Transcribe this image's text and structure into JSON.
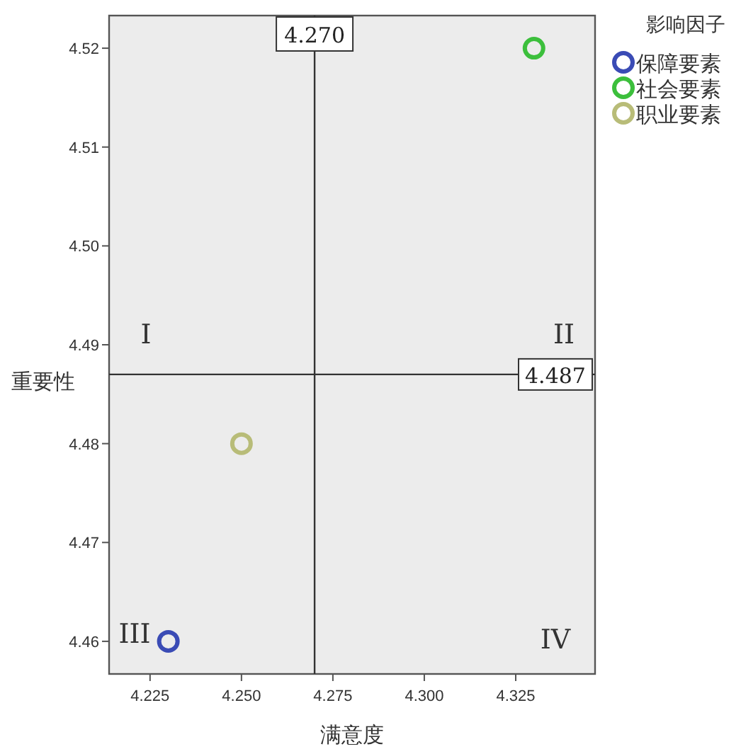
{
  "chart_data": {
    "type": "scatter",
    "xlabel": "满意度",
    "ylabel": "重要性",
    "legend_title": "影响因子",
    "series": [
      {
        "name": "保障要素",
        "color": "#3a4bb5",
        "x": [
          4.23
        ],
        "values": [
          4.46
        ]
      },
      {
        "name": "社会要素",
        "color": "#3cbf3c",
        "x": [
          4.33
        ],
        "values": [
          4.52
        ]
      },
      {
        "name": "职业要素",
        "color": "#b8bc78",
        "x": [
          4.25
        ],
        "values": [
          4.48
        ]
      }
    ],
    "xlim": [
      4.2138,
      4.3467
    ],
    "ylim": [
      4.4567,
      4.5233
    ],
    "xticks": [
      {
        "value": 4.225,
        "label": "4.225"
      },
      {
        "value": 4.25,
        "label": "4.250"
      },
      {
        "value": 4.275,
        "label": "4.275"
      },
      {
        "value": 4.3,
        "label": "4.300"
      },
      {
        "value": 4.325,
        "label": "4.325"
      }
    ],
    "yticks": [
      4.46,
      4.47,
      4.48,
      4.49,
      {
        "value": 4.5,
        "label": "4.50"
      },
      4.51,
      4.52
    ],
    "ref_lines": [
      {
        "axis": "x",
        "value": 4.27,
        "label": "4.270"
      },
      {
        "axis": "y",
        "value": 4.487,
        "label": "4.487"
      }
    ],
    "annotations": [
      "I",
      "II",
      "III",
      "IV"
    ],
    "marker": "circle",
    "grid": false,
    "legend": "top right"
  }
}
